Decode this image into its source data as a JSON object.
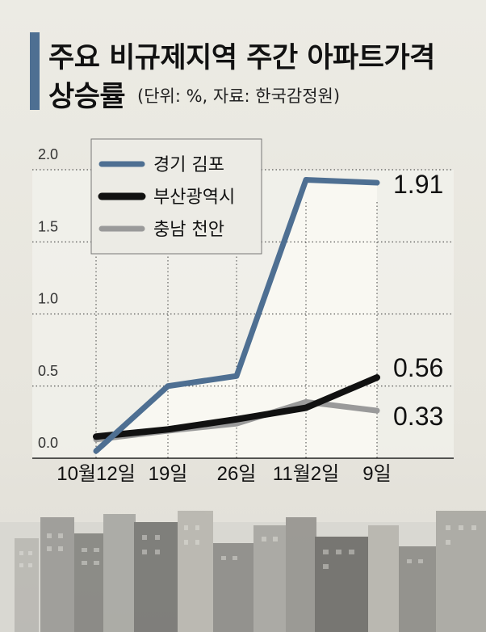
{
  "title": {
    "line1": "주요 비규제지역 주간 아파트가격",
    "line2": "상승률",
    "subtitle": "(단위: %, 자료: 한국감정원)"
  },
  "colors": {
    "accent": "#4e6f92",
    "gimpo": "#4e6f92",
    "busan": "#111111",
    "cheonan": "#9a9a9a"
  },
  "chart_data": {
    "type": "line",
    "title": "주요 비규제지역 주간 아파트가격 상승률",
    "subtitle": "(단위: %, 자료: 한국감정원)",
    "categories": [
      "10월12일",
      "19일",
      "26일",
      "11월2일",
      "9일"
    ],
    "series": [
      {
        "name": "경기 김포",
        "values": [
          0.05,
          0.5,
          0.57,
          1.93,
          1.91
        ]
      },
      {
        "name": "부산광역시",
        "values": [
          0.15,
          0.2,
          0.27,
          0.35,
          0.56
        ]
      },
      {
        "name": "충남 천안",
        "values": [
          0.13,
          0.19,
          0.24,
          0.39,
          0.33
        ]
      }
    ],
    "end_labels": [
      "1.91",
      "0.56",
      "0.33"
    ],
    "ylim": [
      0,
      2.0
    ],
    "yticks": [
      0.0,
      0.5,
      1.0,
      1.5,
      2.0
    ],
    "ytick_labels": [
      "0.0",
      "0.5",
      "1.0",
      "1.5",
      "2.0"
    ],
    "grid": true,
    "legend": "top-left"
  }
}
